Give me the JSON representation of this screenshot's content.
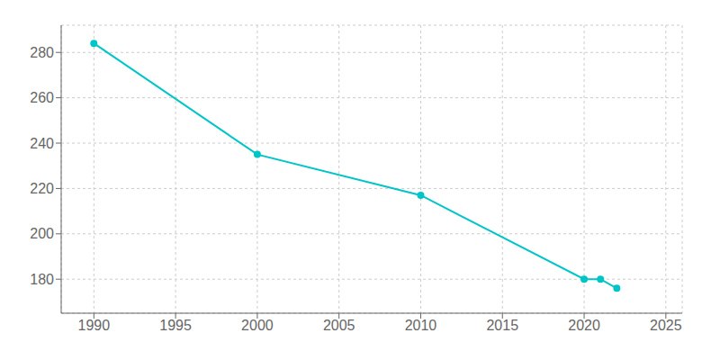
{
  "chart_data": {
    "type": "line",
    "x": [
      1990,
      2000,
      2010,
      2020,
      2021,
      2022
    ],
    "values": [
      284,
      235,
      217,
      180,
      180,
      176
    ],
    "color": "#00C5C8",
    "marker": "circle",
    "xlim": [
      1988,
      2026
    ],
    "ylim": [
      165,
      292
    ],
    "xticks": [
      1990,
      1995,
      2000,
      2005,
      2010,
      2015,
      2020,
      2025
    ],
    "yticks": [
      180,
      200,
      220,
      240,
      260,
      280
    ],
    "grid": true
  }
}
